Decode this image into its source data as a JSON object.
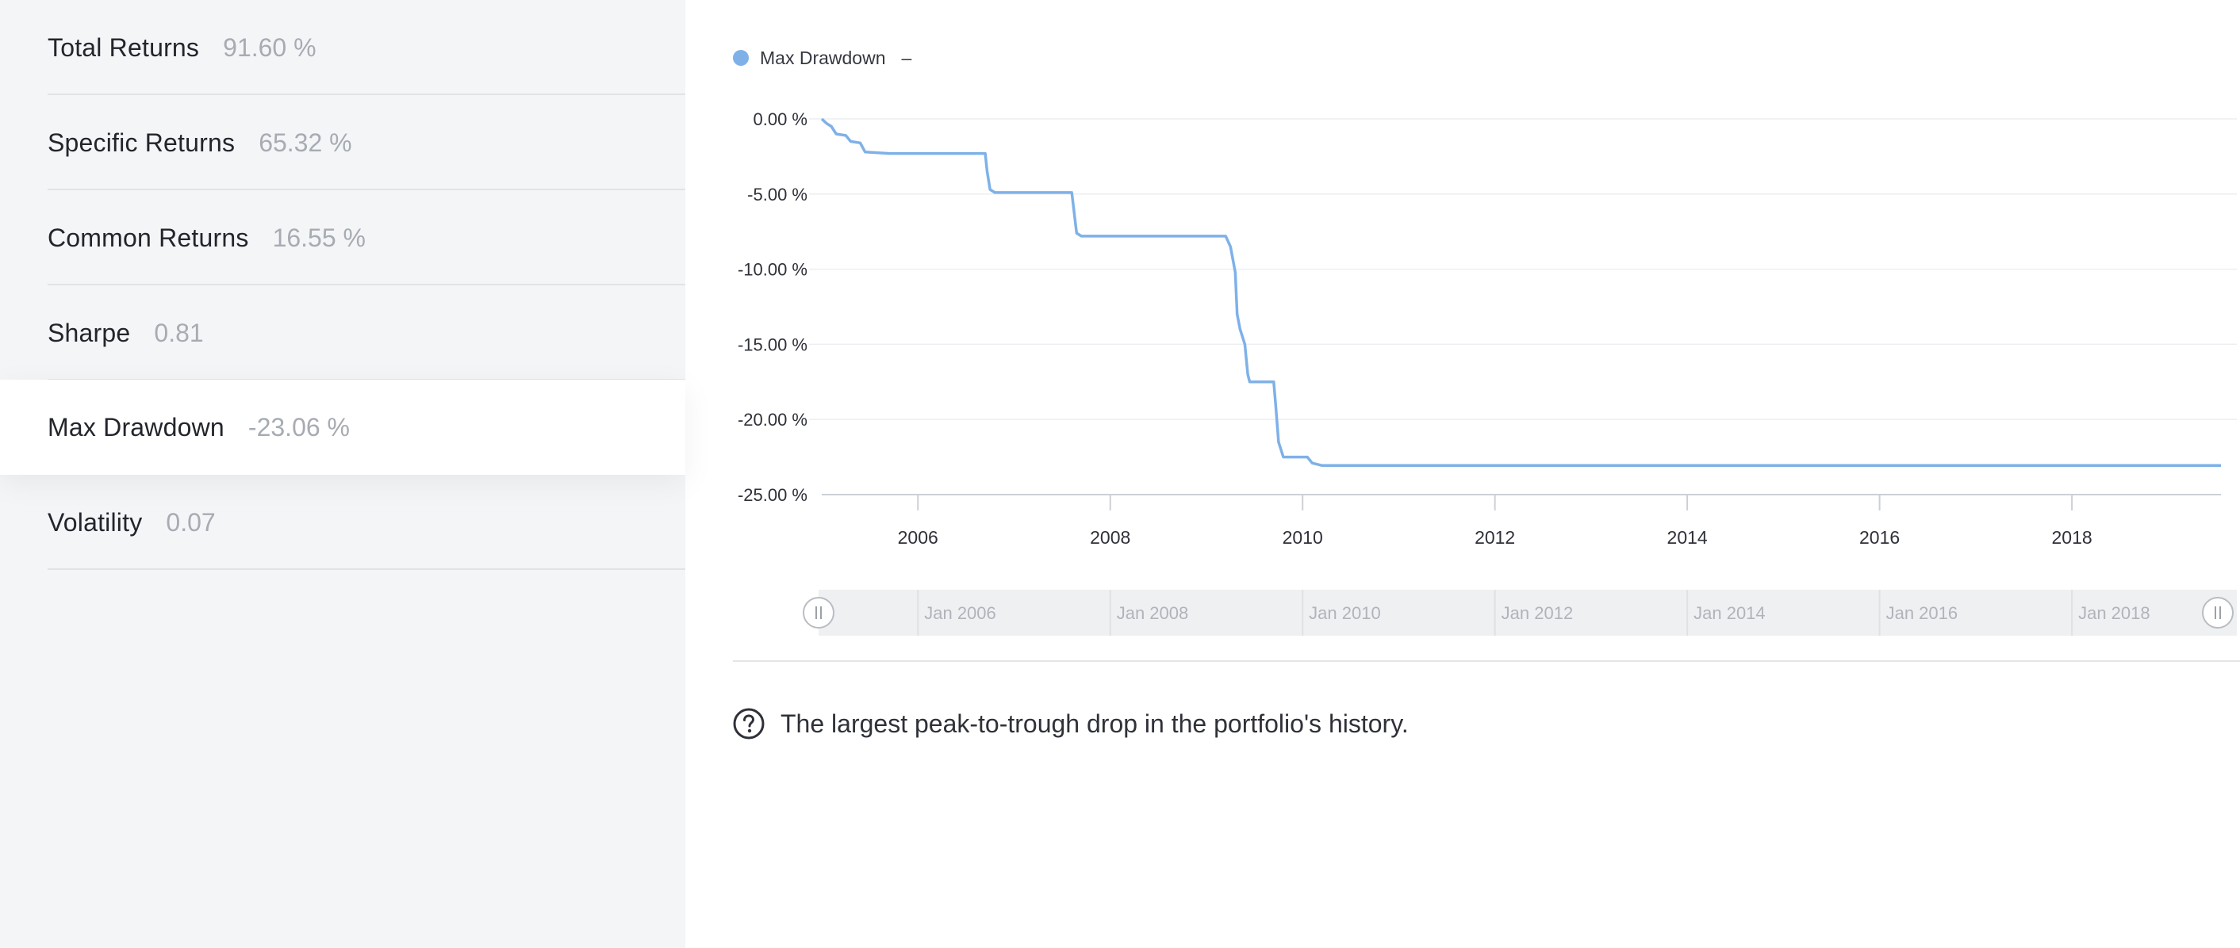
{
  "sidebar": {
    "metrics": [
      {
        "name": "Total Returns",
        "value": "91.60 %"
      },
      {
        "name": "Specific Returns",
        "value": "65.32 %"
      },
      {
        "name": "Common Returns",
        "value": "16.55 %"
      },
      {
        "name": "Sharpe",
        "value": "0.81"
      },
      {
        "name": "Max Drawdown",
        "value": "-23.06 %",
        "active": true
      },
      {
        "name": "Volatility",
        "value": "0.07"
      }
    ]
  },
  "legend": {
    "label": "Max Drawdown",
    "value": "–",
    "color": "#7eb1e8"
  },
  "description": {
    "text": "The largest peak-to-trough drop in the portfolio's history.",
    "icon": "question-circle-icon"
  },
  "navigator": {
    "labels": [
      "Jan 2006",
      "Jan 2008",
      "Jan 2010",
      "Jan 2012",
      "Jan 2014",
      "Jan 2016",
      "Jan 2018"
    ]
  },
  "chart_data": {
    "type": "line",
    "title": "",
    "xlabel": "",
    "ylabel": "",
    "xlim": [
      2005.0,
      2019.55
    ],
    "ylim": [
      -25,
      0
    ],
    "x_ticks": [
      2006,
      2008,
      2010,
      2012,
      2014,
      2016,
      2018
    ],
    "x_tick_labels": [
      "2006",
      "2008",
      "2010",
      "2012",
      "2014",
      "2016",
      "2018"
    ],
    "y_ticks": [
      0,
      -5,
      -10,
      -15,
      -20,
      -25
    ],
    "y_tick_labels": [
      "0.00 %",
      "-5.00 %",
      "-10.00 %",
      "-15.00 %",
      "-20.00 %",
      "-25.00 %"
    ],
    "grid": true,
    "legend_position": "top-left",
    "series": [
      {
        "name": "Max Drawdown",
        "color": "#7eb1e8",
        "x": [
          2005.0,
          2005.05,
          2005.1,
          2005.15,
          2005.25,
          2005.3,
          2005.4,
          2005.45,
          2005.7,
          2006.0,
          2006.5,
          2006.7,
          2006.72,
          2006.75,
          2006.8,
          2007.0,
          2007.3,
          2007.6,
          2007.65,
          2007.7,
          2008.0,
          2008.5,
          2009.0,
          2009.2,
          2009.25,
          2009.3,
          2009.3,
          2009.32,
          2009.35,
          2009.4,
          2009.43,
          2009.45,
          2009.5,
          2009.7,
          2009.72,
          2009.75,
          2009.8,
          2010.0,
          2010.05,
          2010.1,
          2010.2,
          2011.0,
          2012.0,
          2013.0,
          2014.0,
          2015.0,
          2016.0,
          2017.0,
          2018.0,
          2019.0,
          2019.55
        ],
        "values": [
          0.0,
          -0.3,
          -0.5,
          -1.0,
          -1.1,
          -1.5,
          -1.6,
          -2.2,
          -2.3,
          -2.3,
          -2.3,
          -2.3,
          -3.5,
          -4.7,
          -4.9,
          -4.9,
          -4.9,
          -4.9,
          -7.6,
          -7.8,
          -7.8,
          -7.8,
          -7.8,
          -7.8,
          -8.5,
          -10.2,
          -10.2,
          -13.0,
          -14.0,
          -15.0,
          -17.0,
          -17.5,
          -17.5,
          -17.5,
          -19.0,
          -21.5,
          -22.5,
          -22.5,
          -22.5,
          -22.9,
          -23.06,
          -23.06,
          -23.06,
          -23.06,
          -23.06,
          -23.06,
          -23.06,
          -23.06,
          -23.06,
          -23.06,
          -23.06
        ]
      }
    ]
  }
}
